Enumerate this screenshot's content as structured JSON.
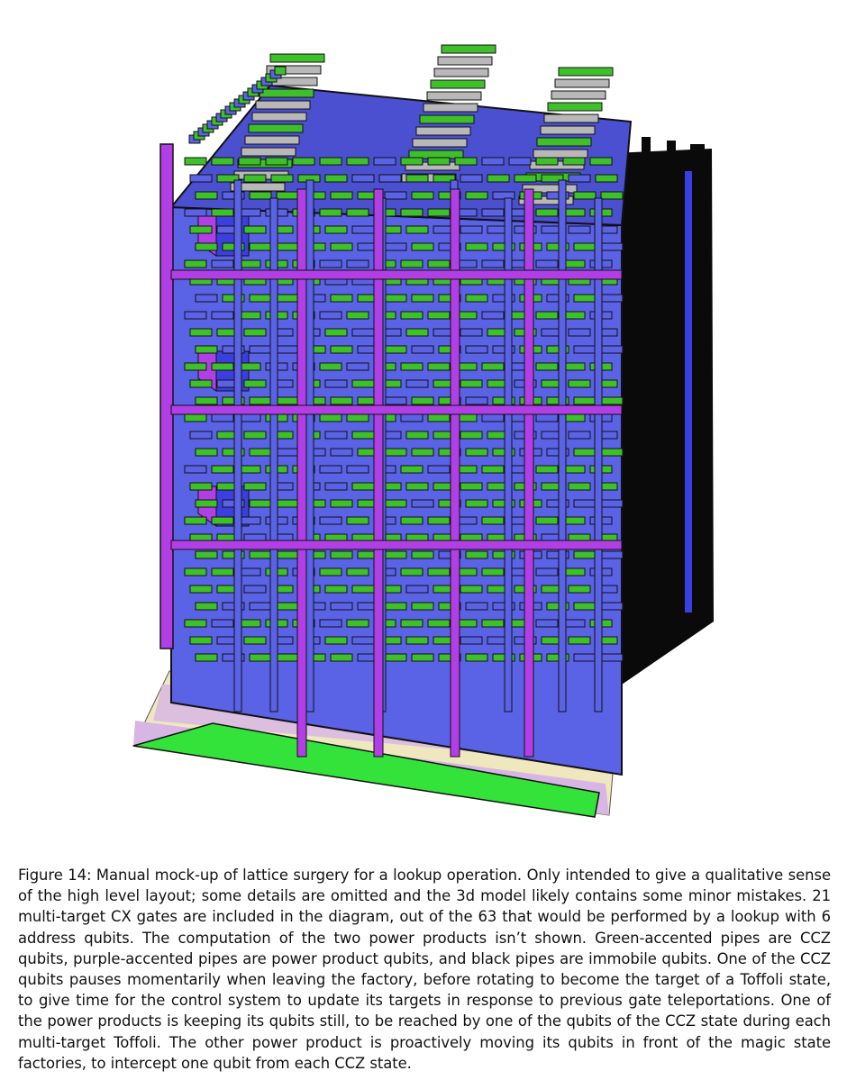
{
  "figure": {
    "image_description": "3D lattice surgery model of a lookup operation",
    "colors": {
      "ccz_accent": "#3ec02a",
      "power_product_accent": "#b23ee6",
      "pipe_body": "#5a62e6",
      "immobile": "#0a0a0a",
      "factory_grey": "#b8b8b8",
      "floor_green": "#33e33a",
      "floor_cream": "#efe8bf",
      "floor_lavender": "#d8b6e4"
    }
  },
  "caption": {
    "text": "Figure 14: Manual mock-up of lattice surgery for a lookup operation. Only intended to give a qualitative sense of the high level layout; some details are omitted and the 3d model likely contains some minor mistakes. 21 multi-target CX gates are included in the diagram, out of the 63 that would be performed by a lookup with 6 address qubits. The computation of the two power products isn’t shown. Green-accented pipes are CCZ qubits, purple-accented pipes are power product qubits, and black pipes are immobile qubits. One of the CCZ qubits pauses momentarily when leaving the factory, before rotating to become the target of a Toffoli state, to give time for the control system to update its targets in response to previous gate teleportations. One of the power products is keeping its qubits still, to be reached by one of the qubits of the CCZ state during each multi-target Toffoli. The other power product is proactively moving its qubits in front of the magic state factories, to intercept one qubit from each CCZ state."
  }
}
